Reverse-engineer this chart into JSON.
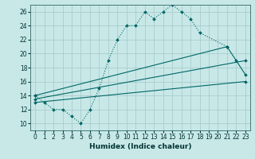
{
  "xlabel": "Humidex (Indice chaleur)",
  "background_color": "#c8e8e8",
  "grid_color": "#aacccc",
  "line_color": "#006666",
  "xlim": [
    -0.5,
    23.5
  ],
  "ylim": [
    9,
    27
  ],
  "xticks": [
    0,
    1,
    2,
    3,
    4,
    5,
    6,
    7,
    8,
    9,
    10,
    11,
    12,
    13,
    14,
    15,
    16,
    17,
    18,
    19,
    20,
    21,
    22,
    23
  ],
  "yticks": [
    10,
    12,
    14,
    16,
    18,
    20,
    22,
    24,
    26
  ],
  "series_main": {
    "x": [
      0,
      1,
      2,
      3,
      4,
      5,
      6,
      7,
      8,
      9,
      10,
      11,
      12,
      13,
      14,
      15,
      16,
      17,
      18,
      21
    ],
    "y": [
      14,
      13,
      12,
      12,
      11,
      10,
      12,
      15,
      19,
      22,
      24,
      24,
      26,
      25,
      26,
      27,
      26,
      25,
      23,
      21
    ]
  },
  "series_line1": {
    "x": [
      0,
      23
    ],
    "y": [
      13.0,
      16.0
    ]
  },
  "series_line2": {
    "x": [
      0,
      23
    ],
    "y": [
      13.5,
      19.0
    ]
  },
  "series_line3": {
    "x": [
      0,
      21,
      22,
      23
    ],
    "y": [
      14.0,
      21.0,
      19.0,
      17.0
    ]
  }
}
